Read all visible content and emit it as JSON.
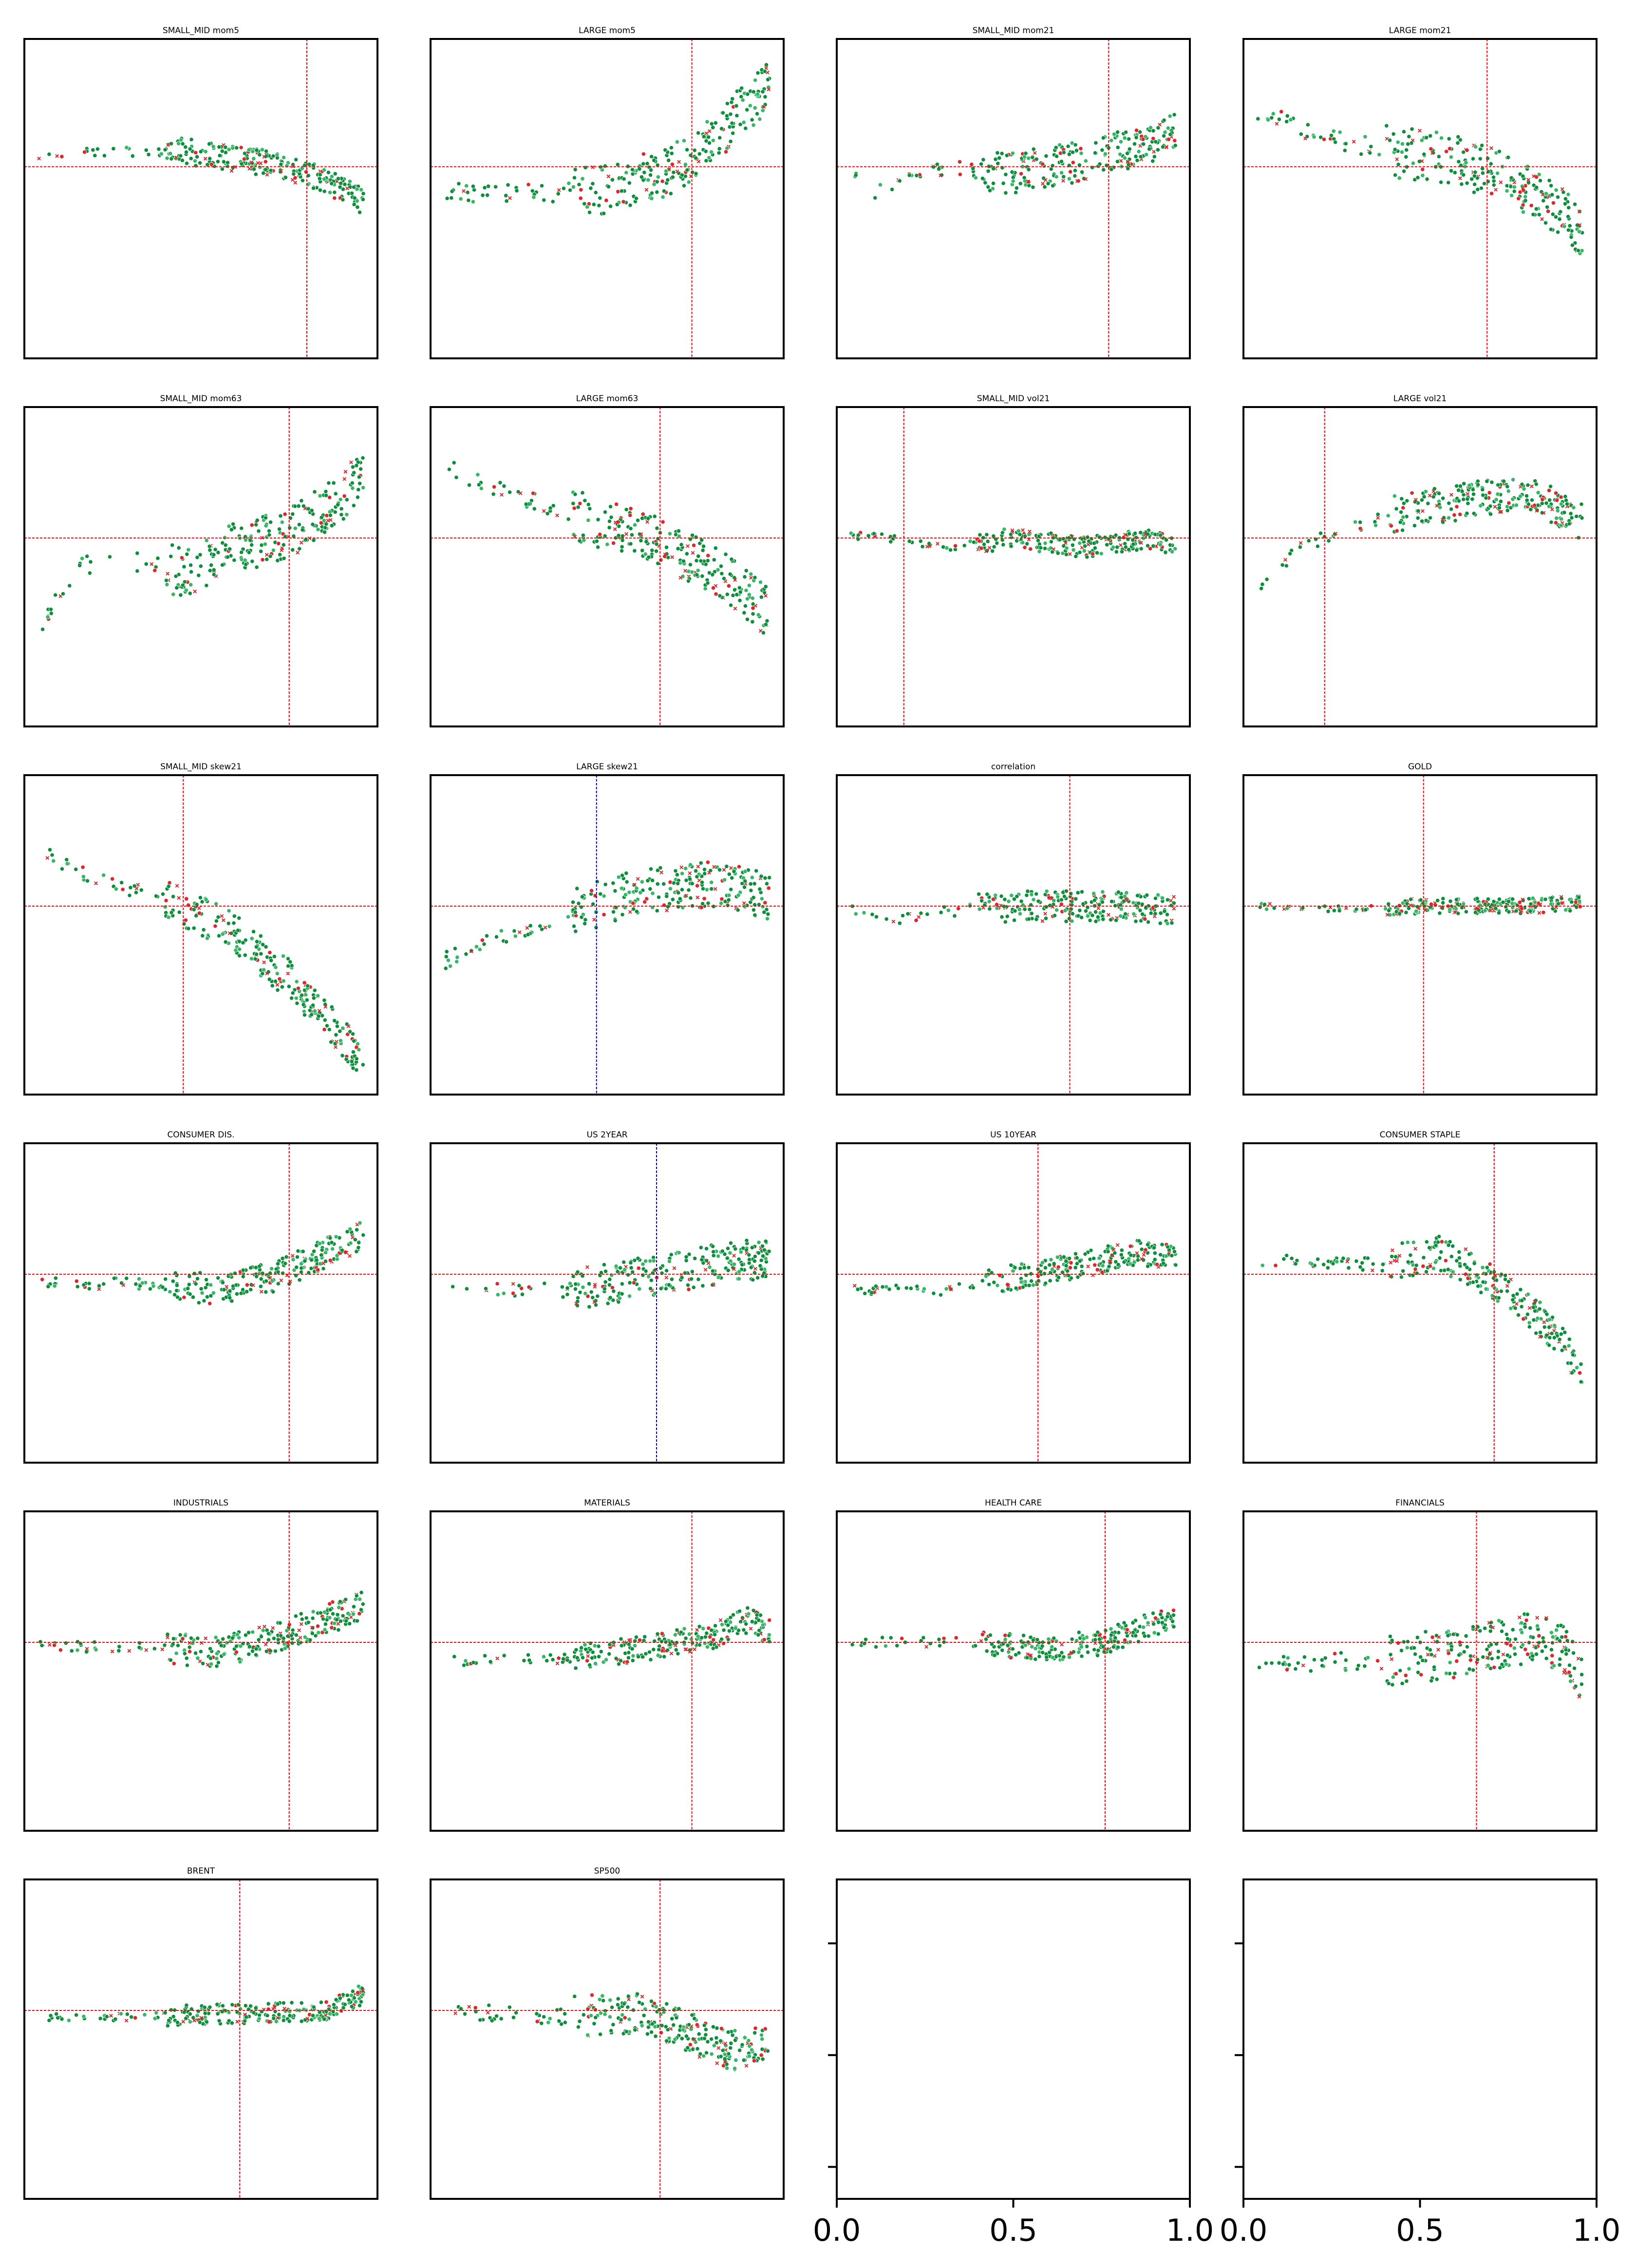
{
  "figure": {
    "colors": {
      "green": "#0b8f3a",
      "green_light": "#34b866",
      "red": "#e0262a",
      "refline": "#ff0000",
      "refline_blue": "#0000cc",
      "frame": "#000000"
    }
  },
  "chart_data": [
    {
      "title": "SMALL_MID mom5",
      "type": "scatter",
      "refline_x": 0.8,
      "refline_y": 0.6,
      "vline_color": "red",
      "trend": [
        [
          0.04,
          0.64
        ],
        [
          0.45,
          0.65
        ],
        [
          0.55,
          0.63
        ],
        [
          0.7,
          0.61
        ],
        [
          0.8,
          0.58
        ],
        [
          0.9,
          0.53
        ],
        [
          0.96,
          0.49
        ]
      ],
      "spread": 0.025
    },
    {
      "title": "LARGE mom5",
      "type": "scatter",
      "refline_x": 0.74,
      "refline_y": 0.6,
      "vline_color": "red",
      "trend": [
        [
          0.04,
          0.52
        ],
        [
          0.45,
          0.52
        ],
        [
          0.55,
          0.55
        ],
        [
          0.65,
          0.58
        ],
        [
          0.75,
          0.63
        ],
        [
          0.85,
          0.74
        ],
        [
          0.96,
          0.85
        ]
      ],
      "spread": 0.05
    },
    {
      "title": "SMALL_MID mom21",
      "type": "scatter",
      "refline_x": 0.77,
      "refline_y": 0.6,
      "vline_color": "red",
      "trend": [
        [
          0.04,
          0.58
        ],
        [
          0.1,
          0.52
        ],
        [
          0.25,
          0.6
        ],
        [
          0.5,
          0.58
        ],
        [
          0.7,
          0.62
        ],
        [
          0.85,
          0.66
        ],
        [
          0.95,
          0.7
        ]
      ],
      "spread": 0.04
    },
    {
      "title": "LARGE mom21",
      "type": "scatter",
      "refline_x": 0.69,
      "refline_y": 0.6,
      "vline_color": "red",
      "trend": [
        [
          0.06,
          0.78
        ],
        [
          0.2,
          0.7
        ],
        [
          0.4,
          0.65
        ],
        [
          0.6,
          0.62
        ],
        [
          0.75,
          0.56
        ],
        [
          0.85,
          0.5
        ],
        [
          0.96,
          0.4
        ]
      ],
      "spread": 0.05
    },
    {
      "title": "SMALL_MID mom63",
      "type": "scatter",
      "refline_x": 0.75,
      "refline_y": 0.59,
      "vline_color": "red",
      "trend": [
        [
          0.04,
          0.3
        ],
        [
          0.15,
          0.5
        ],
        [
          0.3,
          0.52
        ],
        [
          0.45,
          0.48
        ],
        [
          0.6,
          0.56
        ],
        [
          0.75,
          0.6
        ],
        [
          0.85,
          0.68
        ],
        [
          0.96,
          0.78
        ]
      ],
      "spread": 0.05
    },
    {
      "title": "LARGE mom63",
      "type": "scatter",
      "refline_x": 0.65,
      "refline_y": 0.59,
      "vline_color": "red",
      "trend": [
        [
          0.06,
          0.8
        ],
        [
          0.2,
          0.74
        ],
        [
          0.4,
          0.66
        ],
        [
          0.55,
          0.62
        ],
        [
          0.7,
          0.55
        ],
        [
          0.85,
          0.45
        ],
        [
          0.96,
          0.35
        ]
      ],
      "spread": 0.05
    },
    {
      "title": "SMALL_MID vol21",
      "type": "scatter",
      "refline_x": 0.19,
      "refline_y": 0.59,
      "vline_color": "red",
      "trend": [
        [
          0.04,
          0.6
        ],
        [
          0.15,
          0.59
        ],
        [
          0.3,
          0.56
        ],
        [
          0.5,
          0.59
        ],
        [
          0.7,
          0.56
        ],
        [
          0.9,
          0.59
        ],
        [
          0.96,
          0.56
        ]
      ],
      "spread": 0.02
    },
    {
      "title": "LARGE vol21",
      "type": "scatter",
      "refline_x": 0.23,
      "refline_y": 0.59,
      "vline_color": "red",
      "trend": [
        [
          0.05,
          0.42
        ],
        [
          0.15,
          0.55
        ],
        [
          0.25,
          0.6
        ],
        [
          0.4,
          0.66
        ],
        [
          0.6,
          0.7
        ],
        [
          0.8,
          0.74
        ],
        [
          0.96,
          0.64
        ]
      ],
      "spread": 0.035
    },
    {
      "title": "SMALL_MID skew21",
      "type": "scatter",
      "refline_x": 0.45,
      "refline_y": 0.59,
      "vline_color": "red",
      "trend": [
        [
          0.04,
          0.76
        ],
        [
          0.2,
          0.68
        ],
        [
          0.45,
          0.59
        ],
        [
          0.6,
          0.5
        ],
        [
          0.75,
          0.36
        ],
        [
          0.9,
          0.18
        ],
        [
          0.96,
          0.1
        ]
      ],
      "spread": 0.04
    },
    {
      "title": "LARGE skew21",
      "type": "scatter",
      "refline_x": 0.47,
      "refline_y": 0.59,
      "vline_color": "blue",
      "trend": [
        [
          0.04,
          0.42
        ],
        [
          0.2,
          0.5
        ],
        [
          0.4,
          0.57
        ],
        [
          0.6,
          0.64
        ],
        [
          0.8,
          0.66
        ],
        [
          0.96,
          0.62
        ]
      ],
      "spread": 0.045
    },
    {
      "title": "correlation",
      "type": "scatter",
      "refline_x": 0.66,
      "refline_y": 0.59,
      "vline_color": "red",
      "trend": [
        [
          0.04,
          0.59
        ],
        [
          0.15,
          0.54
        ],
        [
          0.3,
          0.57
        ],
        [
          0.5,
          0.59
        ],
        [
          0.7,
          0.59
        ],
        [
          0.96,
          0.58
        ]
      ],
      "spread": 0.03
    },
    {
      "title": "GOLD",
      "type": "scatter",
      "refline_x": 0.51,
      "refline_y": 0.59,
      "vline_color": "red",
      "trend": [
        [
          0.04,
          0.59
        ],
        [
          0.3,
          0.58
        ],
        [
          0.5,
          0.59
        ],
        [
          0.8,
          0.59
        ],
        [
          0.96,
          0.6
        ]
      ],
      "spread": 0.015
    },
    {
      "title": "CONSUMER DIS.",
      "type": "scatter",
      "refline_x": 0.75,
      "refline_y": 0.59,
      "vline_color": "red",
      "trend": [
        [
          0.04,
          0.56
        ],
        [
          0.4,
          0.56
        ],
        [
          0.55,
          0.54
        ],
        [
          0.7,
          0.58
        ],
        [
          0.8,
          0.63
        ],
        [
          0.9,
          0.68
        ],
        [
          0.96,
          0.71
        ]
      ],
      "spread": 0.03
    },
    {
      "title": "US 2YEAR",
      "type": "scatter",
      "refline_x": 0.64,
      "refline_y": 0.59,
      "vline_color": "blue",
      "trend": [
        [
          0.04,
          0.54
        ],
        [
          0.4,
          0.54
        ],
        [
          0.5,
          0.56
        ],
        [
          0.65,
          0.59
        ],
        [
          0.8,
          0.62
        ],
        [
          0.96,
          0.64
        ]
      ],
      "spread": 0.04
    },
    {
      "title": "US 10YEAR",
      "type": "scatter",
      "refline_x": 0.57,
      "refline_y": 0.59,
      "vline_color": "red",
      "trend": [
        [
          0.04,
          0.54
        ],
        [
          0.3,
          0.54
        ],
        [
          0.5,
          0.58
        ],
        [
          0.7,
          0.62
        ],
        [
          0.85,
          0.66
        ],
        [
          0.96,
          0.64
        ]
      ],
      "spread": 0.025
    },
    {
      "title": "CONSUMER STAPLE",
      "type": "scatter",
      "refline_x": 0.71,
      "refline_y": 0.59,
      "vline_color": "red",
      "trend": [
        [
          0.04,
          0.63
        ],
        [
          0.4,
          0.62
        ],
        [
          0.55,
          0.66
        ],
        [
          0.7,
          0.57
        ],
        [
          0.8,
          0.49
        ],
        [
          0.9,
          0.38
        ],
        [
          0.96,
          0.26
        ]
      ],
      "spread": 0.035
    },
    {
      "title": "INDUSTRIALS",
      "type": "scatter",
      "refline_x": 0.75,
      "refline_y": 0.59,
      "vline_color": "red",
      "trend": [
        [
          0.04,
          0.58
        ],
        [
          0.4,
          0.57
        ],
        [
          0.55,
          0.56
        ],
        [
          0.7,
          0.6
        ],
        [
          0.8,
          0.64
        ],
        [
          0.9,
          0.68
        ],
        [
          0.96,
          0.7
        ]
      ],
      "spread": 0.03
    },
    {
      "title": "MATERIALS",
      "type": "scatter",
      "refline_x": 0.74,
      "refline_y": 0.59,
      "vline_color": "red",
      "trend": [
        [
          0.04,
          0.53
        ],
        [
          0.4,
          0.54
        ],
        [
          0.6,
          0.57
        ],
        [
          0.8,
          0.61
        ],
        [
          0.9,
          0.66
        ],
        [
          0.96,
          0.62
        ]
      ],
      "spread": 0.025
    },
    {
      "title": "HEALTH CARE",
      "type": "scatter",
      "refline_x": 0.76,
      "refline_y": 0.59,
      "vline_color": "red",
      "trend": [
        [
          0.04,
          0.59
        ],
        [
          0.4,
          0.59
        ],
        [
          0.6,
          0.57
        ],
        [
          0.75,
          0.59
        ],
        [
          0.85,
          0.63
        ],
        [
          0.96,
          0.67
        ]
      ],
      "spread": 0.025
    },
    {
      "title": "FINANCIALS",
      "type": "scatter",
      "refline_x": 0.66,
      "refline_y": 0.59,
      "vline_color": "red",
      "trend": [
        [
          0.04,
          0.53
        ],
        [
          0.4,
          0.53
        ],
        [
          0.55,
          0.55
        ],
        [
          0.7,
          0.58
        ],
        [
          0.8,
          0.6
        ],
        [
          0.9,
          0.58
        ],
        [
          0.96,
          0.48
        ]
      ],
      "spread": 0.05
    },
    {
      "title": "BRENT",
      "type": "scatter",
      "refline_x": 0.61,
      "refline_y": 0.59,
      "vline_color": "red",
      "trend": [
        [
          0.04,
          0.57
        ],
        [
          0.3,
          0.57
        ],
        [
          0.6,
          0.58
        ],
        [
          0.85,
          0.59
        ],
        [
          0.96,
          0.64
        ]
      ],
      "spread": 0.02
    },
    {
      "title": "SP500",
      "type": "scatter",
      "refline_x": 0.65,
      "refline_y": 0.59,
      "vline_color": "red",
      "trend": [
        [
          0.04,
          0.59
        ],
        [
          0.35,
          0.57
        ],
        [
          0.6,
          0.58
        ],
        [
          0.7,
          0.54
        ],
        [
          0.8,
          0.48
        ],
        [
          0.9,
          0.46
        ],
        [
          0.96,
          0.5
        ]
      ],
      "spread": 0.04
    },
    {
      "title": "",
      "type": "scatter",
      "empty": true,
      "xticks": [
        "0.0",
        "0.5",
        "1.0"
      ],
      "xlim": [
        0,
        1
      ]
    },
    {
      "title": "",
      "type": "scatter",
      "empty": true,
      "xticks": [
        "0.0",
        "0.5",
        "1.0"
      ],
      "xlim": [
        0,
        1
      ]
    }
  ]
}
